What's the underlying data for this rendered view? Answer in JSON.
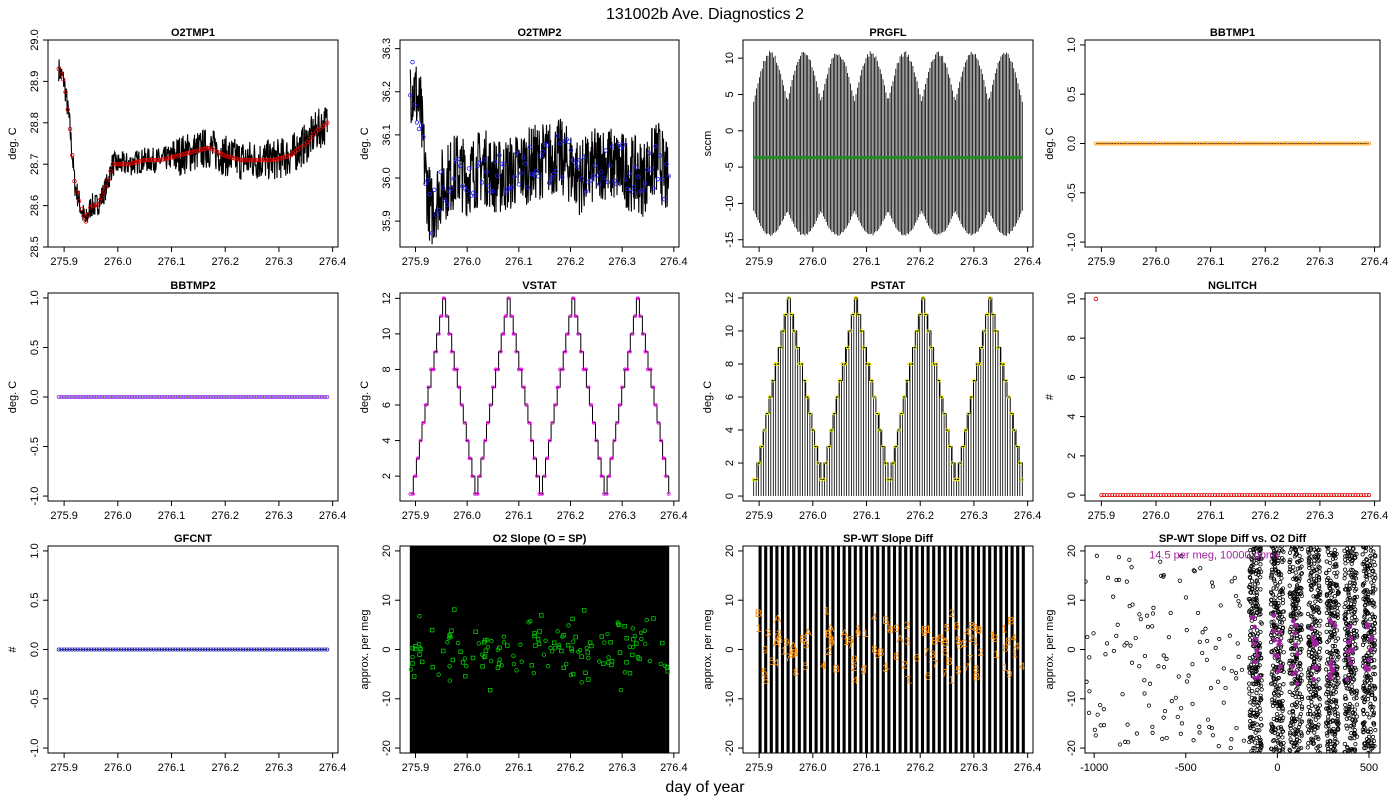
{
  "figure": {
    "title": "131002b   Ave. Diagnostics 2",
    "xlabel": "day of year"
  },
  "chart_data": [
    {
      "id": "o2tmp1",
      "type": "line",
      "title": "O2TMP1",
      "ylabel": "deg. C",
      "xlim": [
        275.87,
        276.41
      ],
      "ylim": [
        28.5,
        29.0
      ],
      "xticks": [
        275.9,
        276.0,
        276.1,
        276.2,
        276.3,
        276.4
      ],
      "yticks": [
        28.5,
        28.6,
        28.7,
        28.8,
        28.9,
        29.0
      ],
      "line_color": "#000000",
      "marker_color": "#e00000",
      "series": [
        {
          "x": [
            275.89,
            275.9,
            275.91,
            275.92,
            275.93,
            275.94,
            275.95,
            275.96,
            275.97,
            275.98,
            275.99,
            276.0,
            276.02,
            276.05,
            276.08,
            276.11,
            276.14,
            276.17,
            276.2,
            276.23,
            276.26,
            276.29,
            276.32,
            276.35,
            276.37,
            276.39
          ],
          "y": [
            28.93,
            28.9,
            28.8,
            28.65,
            28.6,
            28.56,
            28.6,
            28.6,
            28.62,
            28.65,
            28.7,
            28.7,
            28.7,
            28.71,
            28.71,
            28.72,
            28.73,
            28.74,
            28.72,
            28.71,
            28.71,
            28.71,
            28.72,
            28.75,
            28.78,
            28.8
          ]
        }
      ]
    },
    {
      "id": "o2tmp2",
      "type": "line",
      "title": "O2TMP2",
      "ylabel": "deg. C",
      "xlim": [
        275.87,
        276.41
      ],
      "ylim": [
        35.84,
        36.32
      ],
      "xticks": [
        275.9,
        276.0,
        276.1,
        276.2,
        276.3,
        276.4
      ],
      "yticks": [
        35.9,
        36.0,
        36.1,
        36.2,
        36.3
      ],
      "line_color": "#000000",
      "marker_color": "#2020ff",
      "series": [
        {
          "x": [
            275.89,
            275.9,
            275.91,
            275.92,
            275.93,
            275.95,
            275.98,
            276.0,
            276.03,
            276.06,
            276.1,
            276.14,
            276.18,
            276.22,
            276.26,
            276.3,
            276.34,
            276.37,
            276.39
          ],
          "y": [
            36.22,
            36.2,
            36.15,
            36.0,
            35.92,
            35.98,
            36.02,
            36.0,
            36.03,
            36.0,
            36.02,
            36.04,
            36.05,
            36.0,
            36.04,
            36.02,
            36.0,
            36.05,
            35.98
          ]
        }
      ]
    },
    {
      "id": "prgfl",
      "type": "line",
      "title": "PRGFL",
      "ylabel": "sccm",
      "xlim": [
        275.87,
        276.41
      ],
      "ylim": [
        -16,
        12.5
      ],
      "xticks": [
        275.9,
        276.0,
        276.1,
        276.2,
        276.3,
        276.4
      ],
      "yticks": [
        -15,
        -10,
        -5,
        0,
        5,
        10
      ],
      "line_color": "#000000",
      "marker_color": "#228b22",
      "series": [
        {
          "name": "",
          "x": [
            275.89,
            276.39
          ],
          "y": [
            -3.7,
            -3.7
          ]
        }
      ],
      "oscillation": {
        "max": 11,
        "min": -14.5,
        "cycles": 4
      }
    },
    {
      "id": "bbtmp1",
      "type": "scatter",
      "title": "BBTMP1",
      "ylabel": "deg. C",
      "xlim": [
        275.87,
        276.41
      ],
      "ylim": [
        -1.05,
        1.05
      ],
      "xticks": [
        275.9,
        276.0,
        276.1,
        276.2,
        276.3,
        276.4
      ],
      "yticks": [
        -1.0,
        -0.5,
        0.0,
        0.5,
        1.0
      ],
      "marker_color": "#ff9900",
      "series": [
        {
          "x_range": [
            275.89,
            276.39
          ],
          "y": 0.0
        }
      ]
    },
    {
      "id": "bbtmp2",
      "type": "scatter",
      "title": "BBTMP2",
      "ylabel": "deg. C",
      "xlim": [
        275.87,
        276.41
      ],
      "ylim": [
        -1.05,
        1.05
      ],
      "xticks": [
        275.9,
        276.0,
        276.1,
        276.2,
        276.3,
        276.4
      ],
      "yticks": [
        -1.0,
        -0.5,
        0.0,
        0.5,
        1.0
      ],
      "marker_color": "#9b30ff",
      "series": [
        {
          "x_range": [
            275.89,
            276.39
          ],
          "y": 0.0
        }
      ]
    },
    {
      "id": "vstat",
      "type": "line",
      "title": "VSTAT",
      "ylabel": "deg. C",
      "xlim": [
        275.87,
        276.41
      ],
      "ylim": [
        0.6,
        12.3
      ],
      "xticks": [
        275.9,
        276.0,
        276.1,
        276.2,
        276.3,
        276.4
      ],
      "yticks": [
        2,
        4,
        6,
        8,
        10,
        12
      ],
      "line_color": "#000000",
      "marker_color": "#ff00ff",
      "staircase": {
        "min": 1,
        "max": 12,
        "period": 0.125,
        "start": 275.89,
        "end": 276.39,
        "phase_peak": 275.955
      }
    },
    {
      "id": "pstat",
      "type": "line",
      "title": "PSTAT",
      "ylabel": "deg. C",
      "xlim": [
        275.87,
        276.41
      ],
      "ylim": [
        -0.3,
        12.3
      ],
      "xticks": [
        275.9,
        276.0,
        276.1,
        276.2,
        276.3,
        276.4
      ],
      "yticks": [
        0,
        2,
        4,
        6,
        8,
        10,
        12
      ],
      "line_color": "#000000",
      "marker_color": "#e6e600",
      "staircase": {
        "min": 1,
        "max": 12,
        "period": 0.125,
        "start": 275.89,
        "end": 276.39,
        "phase_peak": 275.955,
        "spikes_to": 0
      }
    },
    {
      "id": "nglitch",
      "type": "scatter",
      "title": "NGLITCH",
      "ylabel": "#",
      "xlim": [
        275.87,
        276.41
      ],
      "ylim": [
        -0.3,
        10.3
      ],
      "xticks": [
        275.9,
        276.0,
        276.1,
        276.2,
        276.3,
        276.4
      ],
      "yticks": [
        0,
        2,
        4,
        6,
        8,
        10
      ],
      "marker_color": "#e00000",
      "series": [
        {
          "first": {
            "x": 275.89,
            "y": 10
          },
          "x_range": [
            275.9,
            276.39
          ],
          "y": 0
        }
      ]
    },
    {
      "id": "gfcnt",
      "type": "scatter",
      "title": "GFCNT",
      "ylabel": "#",
      "xlim": [
        275.87,
        276.41
      ],
      "ylim": [
        -1.05,
        1.05
      ],
      "xticks": [
        275.9,
        276.0,
        276.1,
        276.2,
        276.3,
        276.4
      ],
      "yticks": [
        -1.0,
        -0.5,
        0.0,
        0.5,
        1.0
      ],
      "marker_color": "#2020c0",
      "series": [
        {
          "x_range": [
            275.89,
            276.39
          ],
          "y": 0.0
        }
      ]
    },
    {
      "id": "o2slope",
      "type": "scatter",
      "title": "O2 Slope (O = SP)",
      "ylabel": "approx. per meg",
      "xlim": [
        275.87,
        276.41
      ],
      "ylim": [
        -21,
        21
      ],
      "xticks": [
        275.9,
        276.0,
        276.1,
        276.2,
        276.3,
        276.4
      ],
      "yticks": [
        -20,
        -10,
        0,
        10,
        20
      ],
      "marker_color": "#00cc00",
      "noise_band": [
        -21,
        21
      ],
      "points": {
        "x_range": [
          275.89,
          276.39
        ],
        "y_mean": 0,
        "y_spread": 4,
        "count": 150
      }
    },
    {
      "id": "spwt",
      "type": "scatter",
      "title": "SP-WT Slope Diff",
      "ylabel": "approx. per meg",
      "xlim": [
        275.87,
        276.41
      ],
      "ylim": [
        -21,
        21
      ],
      "xticks": [
        275.9,
        276.0,
        276.1,
        276.2,
        276.3,
        276.4
      ],
      "yticks": [
        -20,
        -10,
        0,
        10,
        20
      ],
      "marker_color": "#ff8c00",
      "stripes": {
        "count": 48
      },
      "labels": {
        "glyphs": [
          "1",
          "2",
          "3",
          "4",
          "5",
          "6",
          "7",
          "8",
          "9",
          "A",
          "B"
        ],
        "x_range": [
          275.89,
          276.39
        ],
        "y_spread": 6,
        "count": 110
      }
    },
    {
      "id": "spwt_o2",
      "type": "scatter",
      "title": "SP-WT Slope Diff vs. O2 Diff",
      "ylabel": "approx. per meg",
      "xlim": [
        -1050,
        560
      ],
      "ylim": [
        -21,
        21
      ],
      "xticks": [
        -1000,
        -500,
        0,
        500
      ],
      "yticks": [
        -20,
        -10,
        0,
        10,
        20
      ],
      "marker_color": "#000000",
      "highlight_color": "#a020a0",
      "annotation": "14.5 per meg, 10000 ppmv",
      "clusters": [
        -120,
        0,
        100,
        200,
        300,
        400,
        500
      ]
    }
  ]
}
